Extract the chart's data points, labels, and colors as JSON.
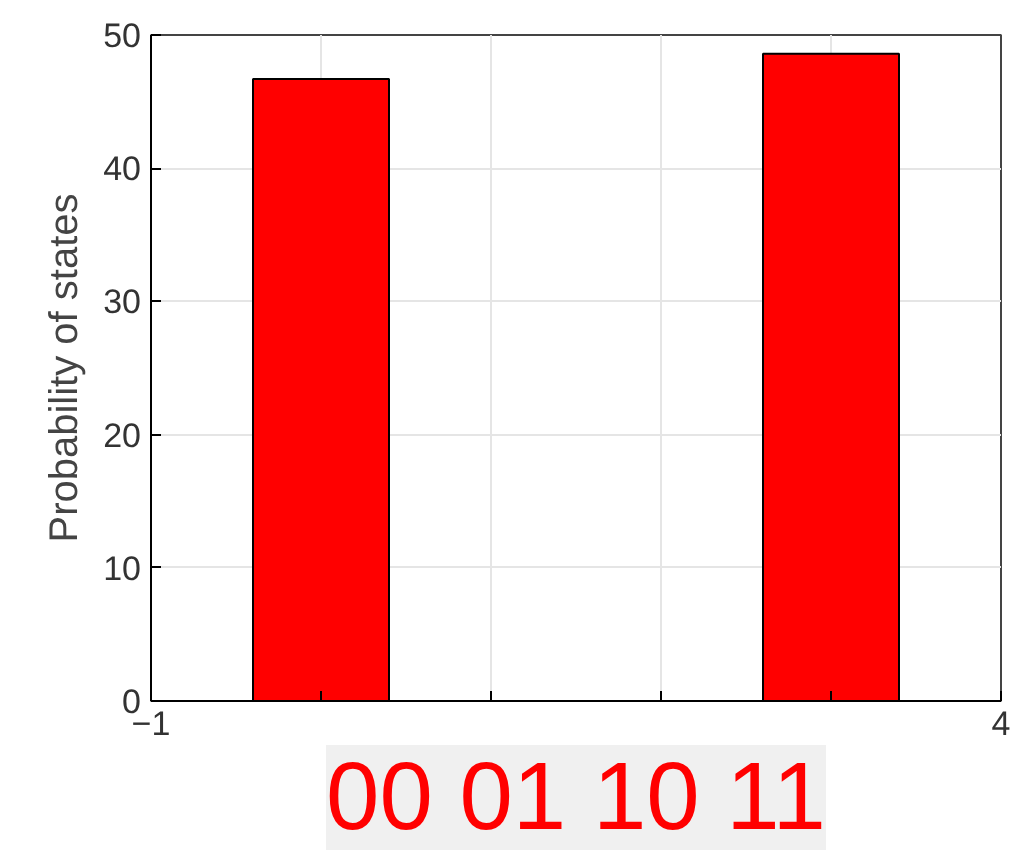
{
  "chart_data": {
    "type": "bar",
    "ylabel": "Probability of states",
    "x": [
      0,
      3
    ],
    "values": [
      46.7,
      48.6
    ],
    "color": "#ff0000",
    "xlim": [
      -1,
      4
    ],
    "xticks": [
      -1,
      {
        "value": 0,
        "label": null
      },
      {
        "value": 1,
        "label": null
      },
      {
        "value": 2,
        "label": null
      },
      {
        "value": 3,
        "label": null
      },
      4
    ],
    "ylim": [
      0,
      50
    ],
    "yticks": [
      0,
      10,
      20,
      30,
      40,
      50
    ],
    "grid": true,
    "annotations": [
      "00 01 10 11"
    ]
  }
}
